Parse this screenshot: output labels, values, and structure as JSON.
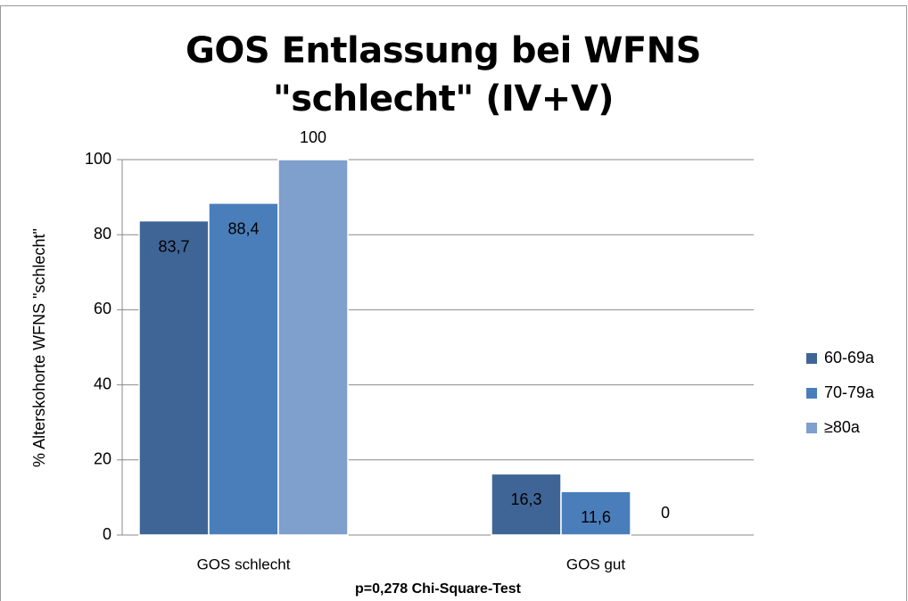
{
  "chart_data": {
    "type": "bar",
    "title": "GOS Entlassung bei WFNS \"schlecht\" (IV+V)",
    "xlabel": "p=0,278 Chi-Square-Test",
    "ylabel": "% Alterskohorte WFNS \"schlecht\"",
    "categories": [
      "GOS schlecht",
      "GOS gut"
    ],
    "series": [
      {
        "name": "60-69a",
        "color": "#3f6597",
        "values": [
          83.7,
          16.3
        ],
        "value_labels": [
          "83,7",
          "16,3"
        ]
      },
      {
        "name": "70-79a",
        "color": "#4a7ebb",
        "values": [
          88.4,
          11.6
        ],
        "value_labels": [
          "88,4",
          "11,6"
        ]
      },
      {
        "name": "≥80a",
        "color": "#7f9fcc",
        "values": [
          100,
          0
        ],
        "value_labels": [
          "100",
          "0"
        ]
      }
    ],
    "ylim": [
      0,
      100
    ],
    "yticks": [
      0,
      20,
      40,
      60,
      80,
      100
    ],
    "grid": true,
    "legend": "right"
  }
}
